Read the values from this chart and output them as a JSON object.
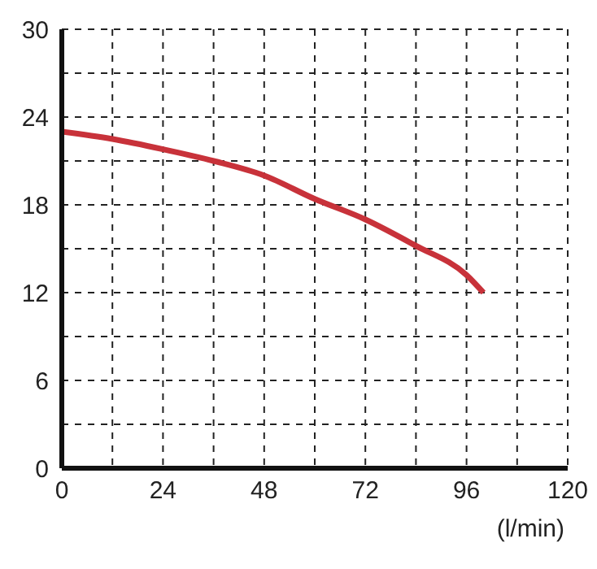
{
  "chart_data": {
    "type": "line",
    "xlabel": "(l/min)",
    "series": [
      {
        "color": "#c8323a",
        "x": [
          0,
          12,
          24,
          36,
          48,
          60,
          72,
          84,
          96,
          100
        ],
        "values": [
          23,
          22.5,
          21.8,
          21,
          20,
          18.4,
          17,
          15.2,
          13.2,
          12
        ]
      }
    ],
    "xlim": [
      0,
      120
    ],
    "xticks": [
      0,
      {
        "value": 12,
        "label": null
      },
      24,
      {
        "value": 36,
        "label": null
      },
      48,
      {
        "value": 60,
        "label": null
      },
      72,
      {
        "value": 84,
        "label": null
      },
      96,
      {
        "value": 108,
        "label": null
      },
      120
    ],
    "ylim": [
      0,
      30
    ],
    "yticks": [
      0,
      {
        "value": 3,
        "label": null
      },
      6,
      {
        "value": 9,
        "label": null
      },
      12,
      {
        "value": 15,
        "label": null
      },
      18,
      {
        "value": 21,
        "label": null
      },
      24,
      {
        "value": 27,
        "label": null
      },
      30
    ],
    "grid": true,
    "marker": "none",
    "line_style": "solid"
  }
}
